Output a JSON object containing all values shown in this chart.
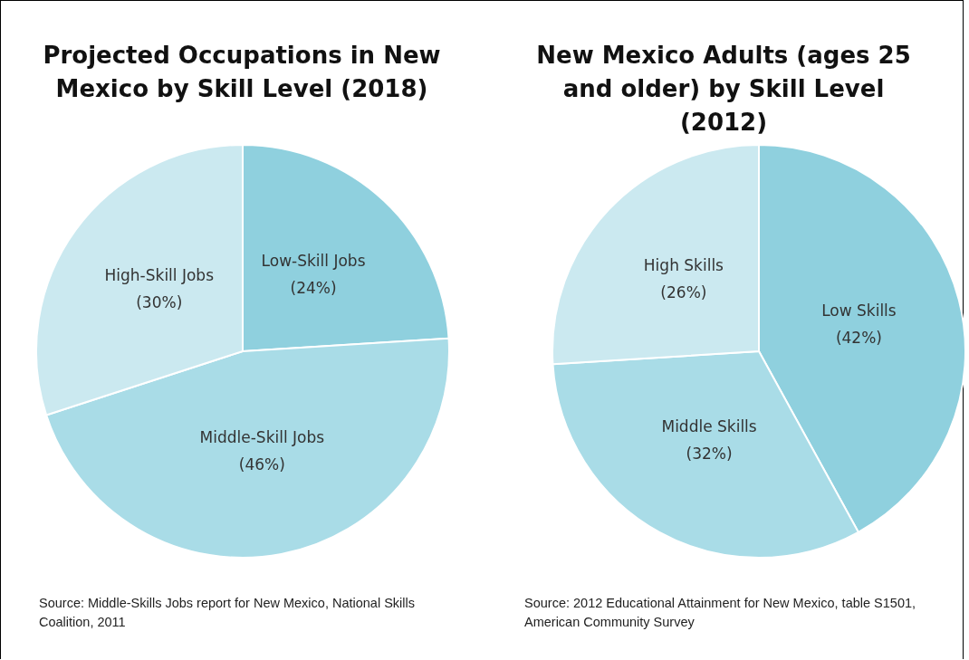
{
  "chart_data": [
    {
      "type": "pie",
      "title": "Projected Occupations in New Mexico by Skill Level (2018)",
      "categories": [
        "Low-Skill Jobs",
        "Middle-Skill Jobs",
        "High-Skill Jobs"
      ],
      "values": [
        24,
        46,
        30
      ],
      "colors": [
        "#8fd0de",
        "#a9dce7",
        "#cbe9f0"
      ],
      "value_labels": [
        "(24%)",
        "(46%)",
        "(30%)"
      ],
      "annotations": [
        "Source: Middle-Skills Jobs report for New Mexico, National Skills Coalition, 2011"
      ]
    },
    {
      "type": "pie",
      "title": "New Mexico Adults (ages 25 and older) by Skill Level (2012)",
      "categories": [
        "Low Skills",
        "Middle Skills",
        "High Skills"
      ],
      "values": [
        42,
        32,
        26
      ],
      "colors": [
        "#8fd0de",
        "#a9dce7",
        "#cbe9f0"
      ],
      "value_labels": [
        "(42%)",
        "(32%)",
        "(26%)"
      ],
      "annotations": [
        "Source: 2012 Educational Attainment for New Mexico, table S1501, American Community Survey"
      ]
    }
  ]
}
